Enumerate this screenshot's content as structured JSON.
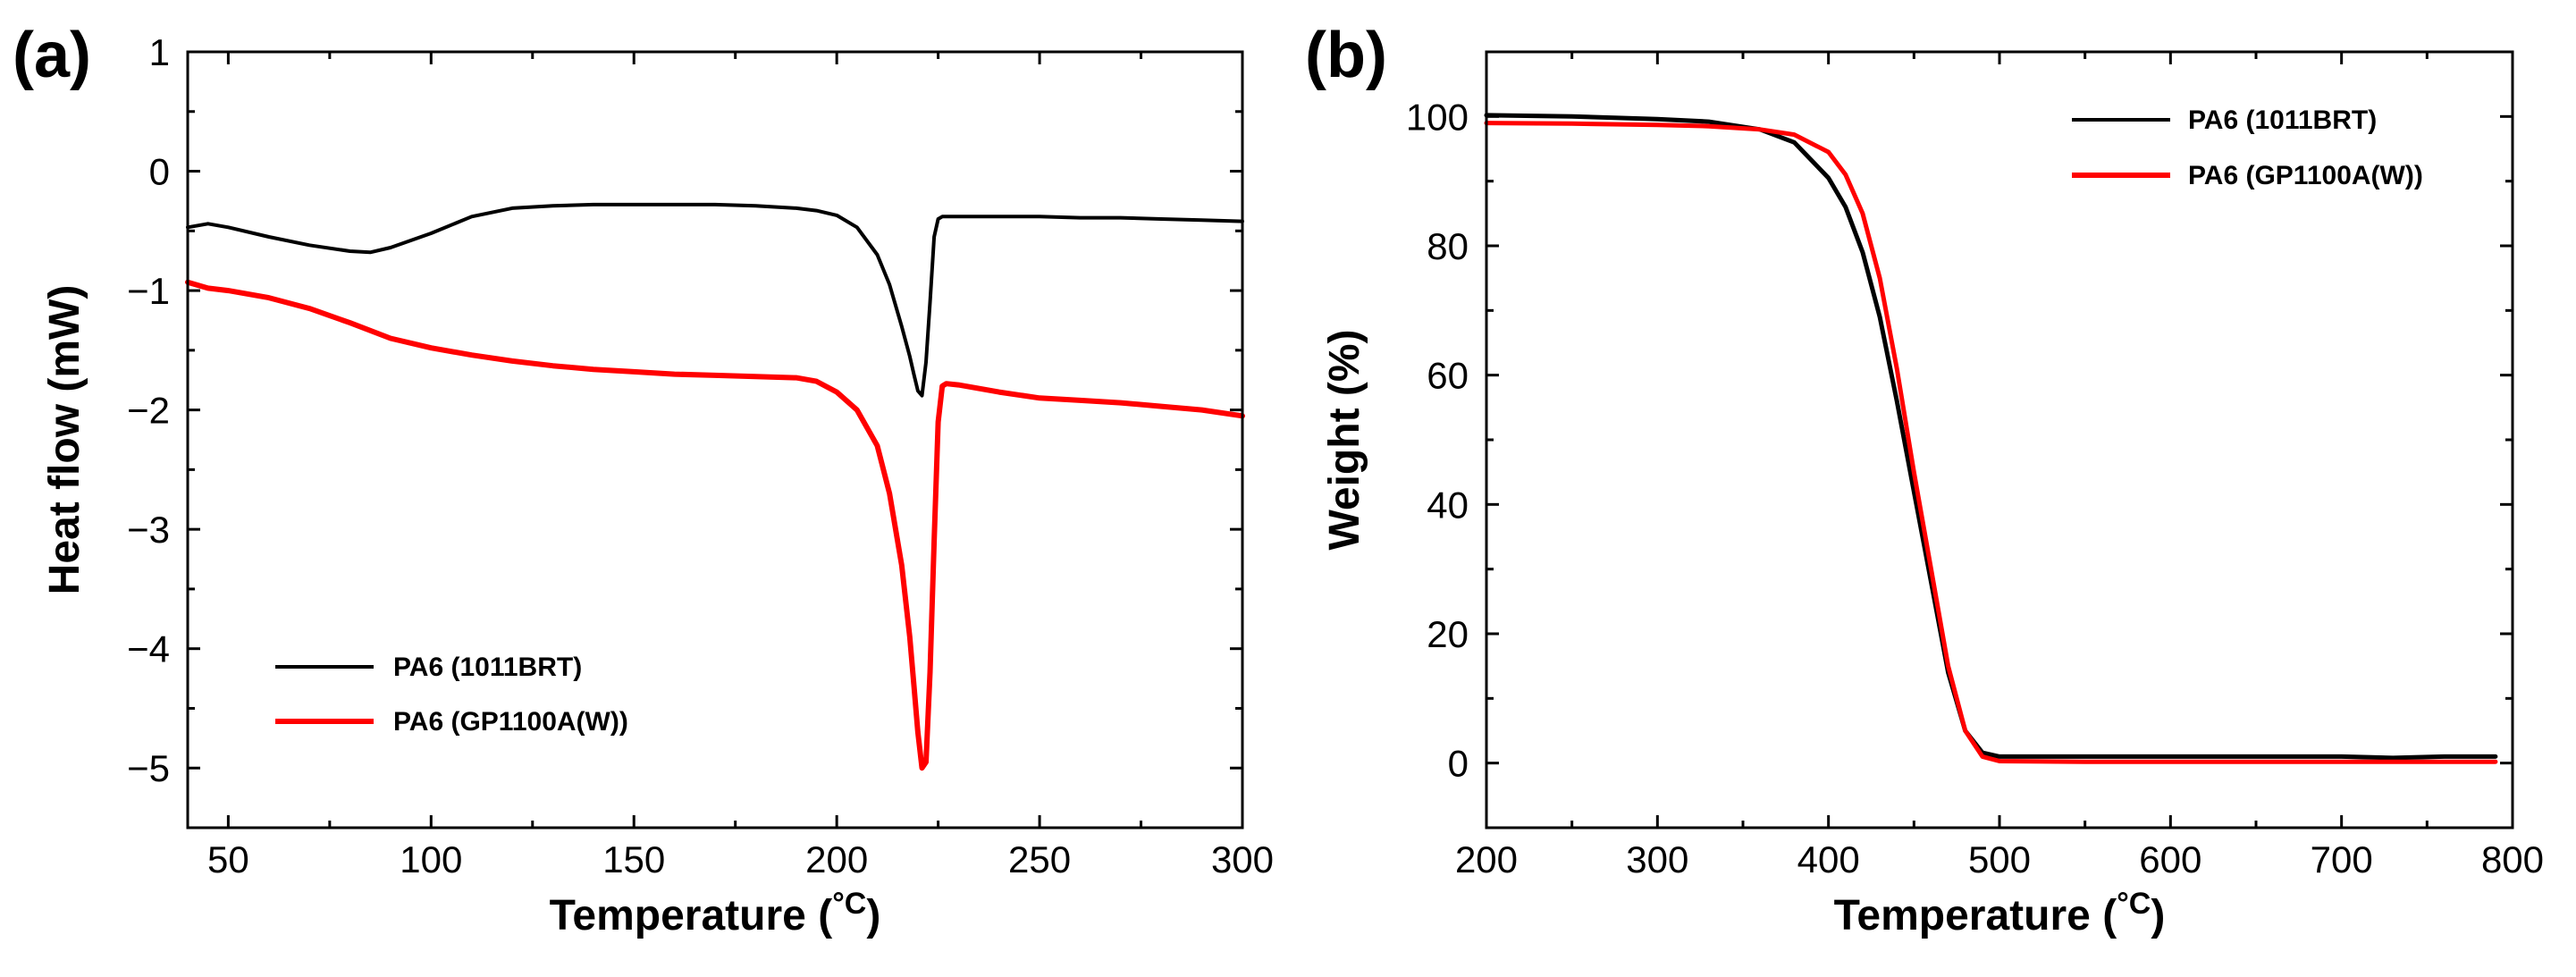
{
  "chart_data": [
    {
      "type": "line",
      "panel_label": "(a)",
      "title": "",
      "xlabel": "Temperature (",
      "xlabel_unit": "°C",
      "xlabel_close": ")",
      "ylabel": "Heat flow (mW)",
      "xlim": [
        40,
        300
      ],
      "ylim": [
        -5.5,
        1
      ],
      "xticks": [
        50,
        100,
        150,
        200,
        250,
        300
      ],
      "yticks": [
        1,
        0,
        -1,
        -2,
        -3,
        -4,
        -5
      ],
      "xtick_labels": [
        "50",
        "100",
        "150",
        "200",
        "250",
        "300"
      ],
      "ytick_labels": [
        "1",
        "0",
        "−1",
        "−2",
        "−3",
        "−4",
        "−5"
      ],
      "legend_position": "lower-left",
      "series": [
        {
          "name": "PA6 (1011BRT)",
          "color": "#000000",
          "x": [
            40,
            45,
            50,
            60,
            70,
            80,
            85,
            90,
            100,
            110,
            120,
            130,
            140,
            150,
            160,
            170,
            180,
            190,
            195,
            200,
            205,
            210,
            213,
            216,
            218,
            219,
            220,
            221,
            222,
            223,
            224,
            225,
            226,
            230,
            240,
            250,
            260,
            270,
            280,
            290,
            300
          ],
          "y": [
            -0.47,
            -0.44,
            -0.47,
            -0.55,
            -0.62,
            -0.67,
            -0.68,
            -0.64,
            -0.52,
            -0.38,
            -0.31,
            -0.29,
            -0.28,
            -0.28,
            -0.28,
            -0.28,
            -0.29,
            -0.31,
            -0.33,
            -0.37,
            -0.47,
            -0.7,
            -0.95,
            -1.3,
            -1.55,
            -1.7,
            -1.84,
            -1.88,
            -1.6,
            -1.1,
            -0.55,
            -0.4,
            -0.38,
            -0.38,
            -0.38,
            -0.38,
            -0.39,
            -0.39,
            -0.4,
            -0.41,
            -0.42
          ]
        },
        {
          "name": "PA6 (GP1100A(W))",
          "color": "#ff0000",
          "x": [
            40,
            45,
            50,
            60,
            70,
            80,
            90,
            100,
            110,
            120,
            130,
            140,
            150,
            160,
            170,
            180,
            190,
            195,
            200,
            205,
            210,
            213,
            216,
            218,
            219,
            220,
            221,
            222,
            223,
            224,
            225,
            226,
            227,
            230,
            240,
            250,
            260,
            270,
            280,
            290,
            300
          ],
          "y": [
            -0.93,
            -0.98,
            -1.0,
            -1.06,
            -1.15,
            -1.27,
            -1.4,
            -1.48,
            -1.54,
            -1.59,
            -1.63,
            -1.66,
            -1.68,
            -1.7,
            -1.71,
            -1.72,
            -1.73,
            -1.76,
            -1.85,
            -2.0,
            -2.3,
            -2.7,
            -3.3,
            -3.9,
            -4.3,
            -4.7,
            -5.0,
            -4.95,
            -4.2,
            -3.1,
            -2.1,
            -1.8,
            -1.78,
            -1.79,
            -1.85,
            -1.9,
            -1.92,
            -1.94,
            -1.97,
            -2.0,
            -2.05
          ]
        }
      ]
    },
    {
      "type": "line",
      "panel_label": "(b)",
      "title": "",
      "xlabel": "Temperature (",
      "xlabel_unit": "°C",
      "xlabel_close": ")",
      "ylabel": "Weight (%)",
      "xlim": [
        200,
        800
      ],
      "ylim": [
        -10,
        110
      ],
      "xticks": [
        200,
        300,
        400,
        500,
        600,
        700,
        800
      ],
      "yticks": [
        0,
        20,
        40,
        60,
        80,
        100
      ],
      "xtick_labels": [
        "200",
        "300",
        "400",
        "500",
        "600",
        "700",
        "800"
      ],
      "ytick_labels": [
        "0",
        "20",
        "40",
        "60",
        "80",
        "100"
      ],
      "legend_position": "top-right",
      "series": [
        {
          "name": "PA6 (1011BRT)",
          "color": "#000000",
          "x": [
            200,
            250,
            300,
            330,
            360,
            380,
            400,
            410,
            420,
            430,
            440,
            450,
            460,
            470,
            480,
            490,
            500,
            550,
            600,
            650,
            700,
            730,
            760,
            790
          ],
          "y": [
            100.2,
            100.0,
            99.6,
            99.2,
            98.0,
            96.0,
            90.5,
            86.0,
            79.0,
            69.0,
            56.0,
            42.0,
            28.0,
            14.0,
            5.0,
            1.6,
            1.0,
            1.0,
            1.0,
            1.0,
            1.0,
            0.8,
            1.0,
            1.0
          ]
        },
        {
          "name": "PA6 (GP1100A(W))",
          "color": "#ff0000",
          "x": [
            200,
            250,
            300,
            330,
            360,
            380,
            400,
            410,
            420,
            430,
            440,
            450,
            460,
            470,
            480,
            490,
            500,
            550,
            600,
            650,
            700,
            750,
            790
          ],
          "y": [
            99.0,
            98.9,
            98.7,
            98.5,
            98.0,
            97.2,
            94.5,
            91.0,
            85.0,
            75.0,
            61.0,
            45.0,
            30.0,
            15.0,
            5.0,
            1.0,
            0.3,
            0.2,
            0.2,
            0.2,
            0.2,
            0.2,
            0.2
          ]
        }
      ]
    }
  ]
}
